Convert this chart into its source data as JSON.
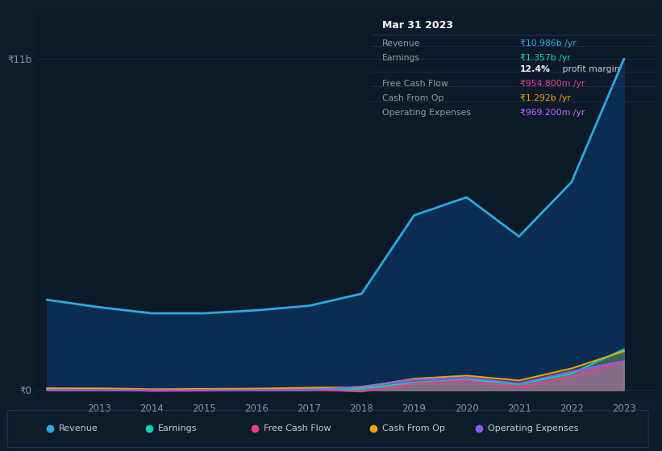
{
  "background_color": "#0d1b2a",
  "plot_bg_color": "#0c1929",
  "grid_color": "#1a2f45",
  "years": [
    2012,
    2013,
    2014,
    2015,
    2016,
    2017,
    2018,
    2019,
    2020,
    2021,
    2022,
    2023
  ],
  "revenue": [
    3.0,
    2.75,
    2.55,
    2.55,
    2.65,
    2.8,
    3.2,
    5.8,
    6.4,
    5.1,
    6.9,
    10.986
  ],
  "earnings": [
    0.04,
    0.03,
    0.01,
    0.01,
    0.02,
    0.03,
    0.05,
    0.25,
    0.35,
    0.2,
    0.55,
    1.357
  ],
  "free_cash_flow": [
    0.0,
    0.02,
    -0.03,
    -0.02,
    0.02,
    0.02,
    -0.05,
    0.22,
    0.32,
    0.1,
    0.45,
    0.9548
  ],
  "cash_from_op": [
    0.06,
    0.06,
    0.03,
    0.04,
    0.05,
    0.08,
    0.1,
    0.38,
    0.48,
    0.32,
    0.72,
    1.292
  ],
  "operating_expenses": [
    0.0,
    0.0,
    0.0,
    0.0,
    0.0,
    0.0,
    0.12,
    0.35,
    0.42,
    0.22,
    0.62,
    0.9692
  ],
  "revenue_color": "#29abe2",
  "earnings_color": "#00d4b8",
  "free_cash_flow_color": "#e83e8c",
  "cash_from_op_color": "#f0a500",
  "operating_expenses_color": "#8b5cf6",
  "revenue_fill_color": "#0a2d52",
  "ylim_min": -0.3,
  "ylim_max": 12.5,
  "ytick_val_0": 0,
  "ytick_val_11": 11,
  "ytick_label_0": "₹0",
  "ytick_label_11": "₹11b",
  "xlim_min": 2011.8,
  "xlim_max": 2023.6,
  "xtick_positions": [
    2013,
    2014,
    2015,
    2016,
    2017,
    2018,
    2019,
    2020,
    2021,
    2022,
    2023
  ],
  "xtick_labels": [
    "2013",
    "2014",
    "2015",
    "2016",
    "2017",
    "2018",
    "2019",
    "2020",
    "2021",
    "2022",
    "2023"
  ],
  "info_box_title": "Mar 31 2023",
  "info_box_bg": "#0a0f1a",
  "info_box_border": "#2a3a5a",
  "info_rows": [
    {
      "label": "Revenue",
      "value": "₹10.986b /yr",
      "value_color": "#29abe2",
      "divider_above": true
    },
    {
      "label": "Earnings",
      "value": "₹1.357b /yr",
      "value_color": "#00d4b8",
      "divider_above": true
    },
    {
      "label": "",
      "value": "12.4% profit margin",
      "value_color": "#ffffff",
      "divider_above": false,
      "bold_prefix": "12.4%"
    },
    {
      "label": "Free Cash Flow",
      "value": "₹954.800m /yr",
      "value_color": "#e83e8c",
      "divider_above": true
    },
    {
      "label": "Cash From Op",
      "value": "₹1.292b /yr",
      "value_color": "#f0a500",
      "divider_above": true
    },
    {
      "label": "Operating Expenses",
      "value": "₹969.200m /yr",
      "value_color": "#cc66ff",
      "divider_above": true
    }
  ],
  "legend_items": [
    {
      "label": "Revenue",
      "color": "#29abe2"
    },
    {
      "label": "Earnings",
      "color": "#00d4b8"
    },
    {
      "label": "Free Cash Flow",
      "color": "#e83e8c"
    },
    {
      "label": "Cash From Op",
      "color": "#f0a500"
    },
    {
      "label": "Operating Expenses",
      "color": "#8b5cf6"
    }
  ]
}
